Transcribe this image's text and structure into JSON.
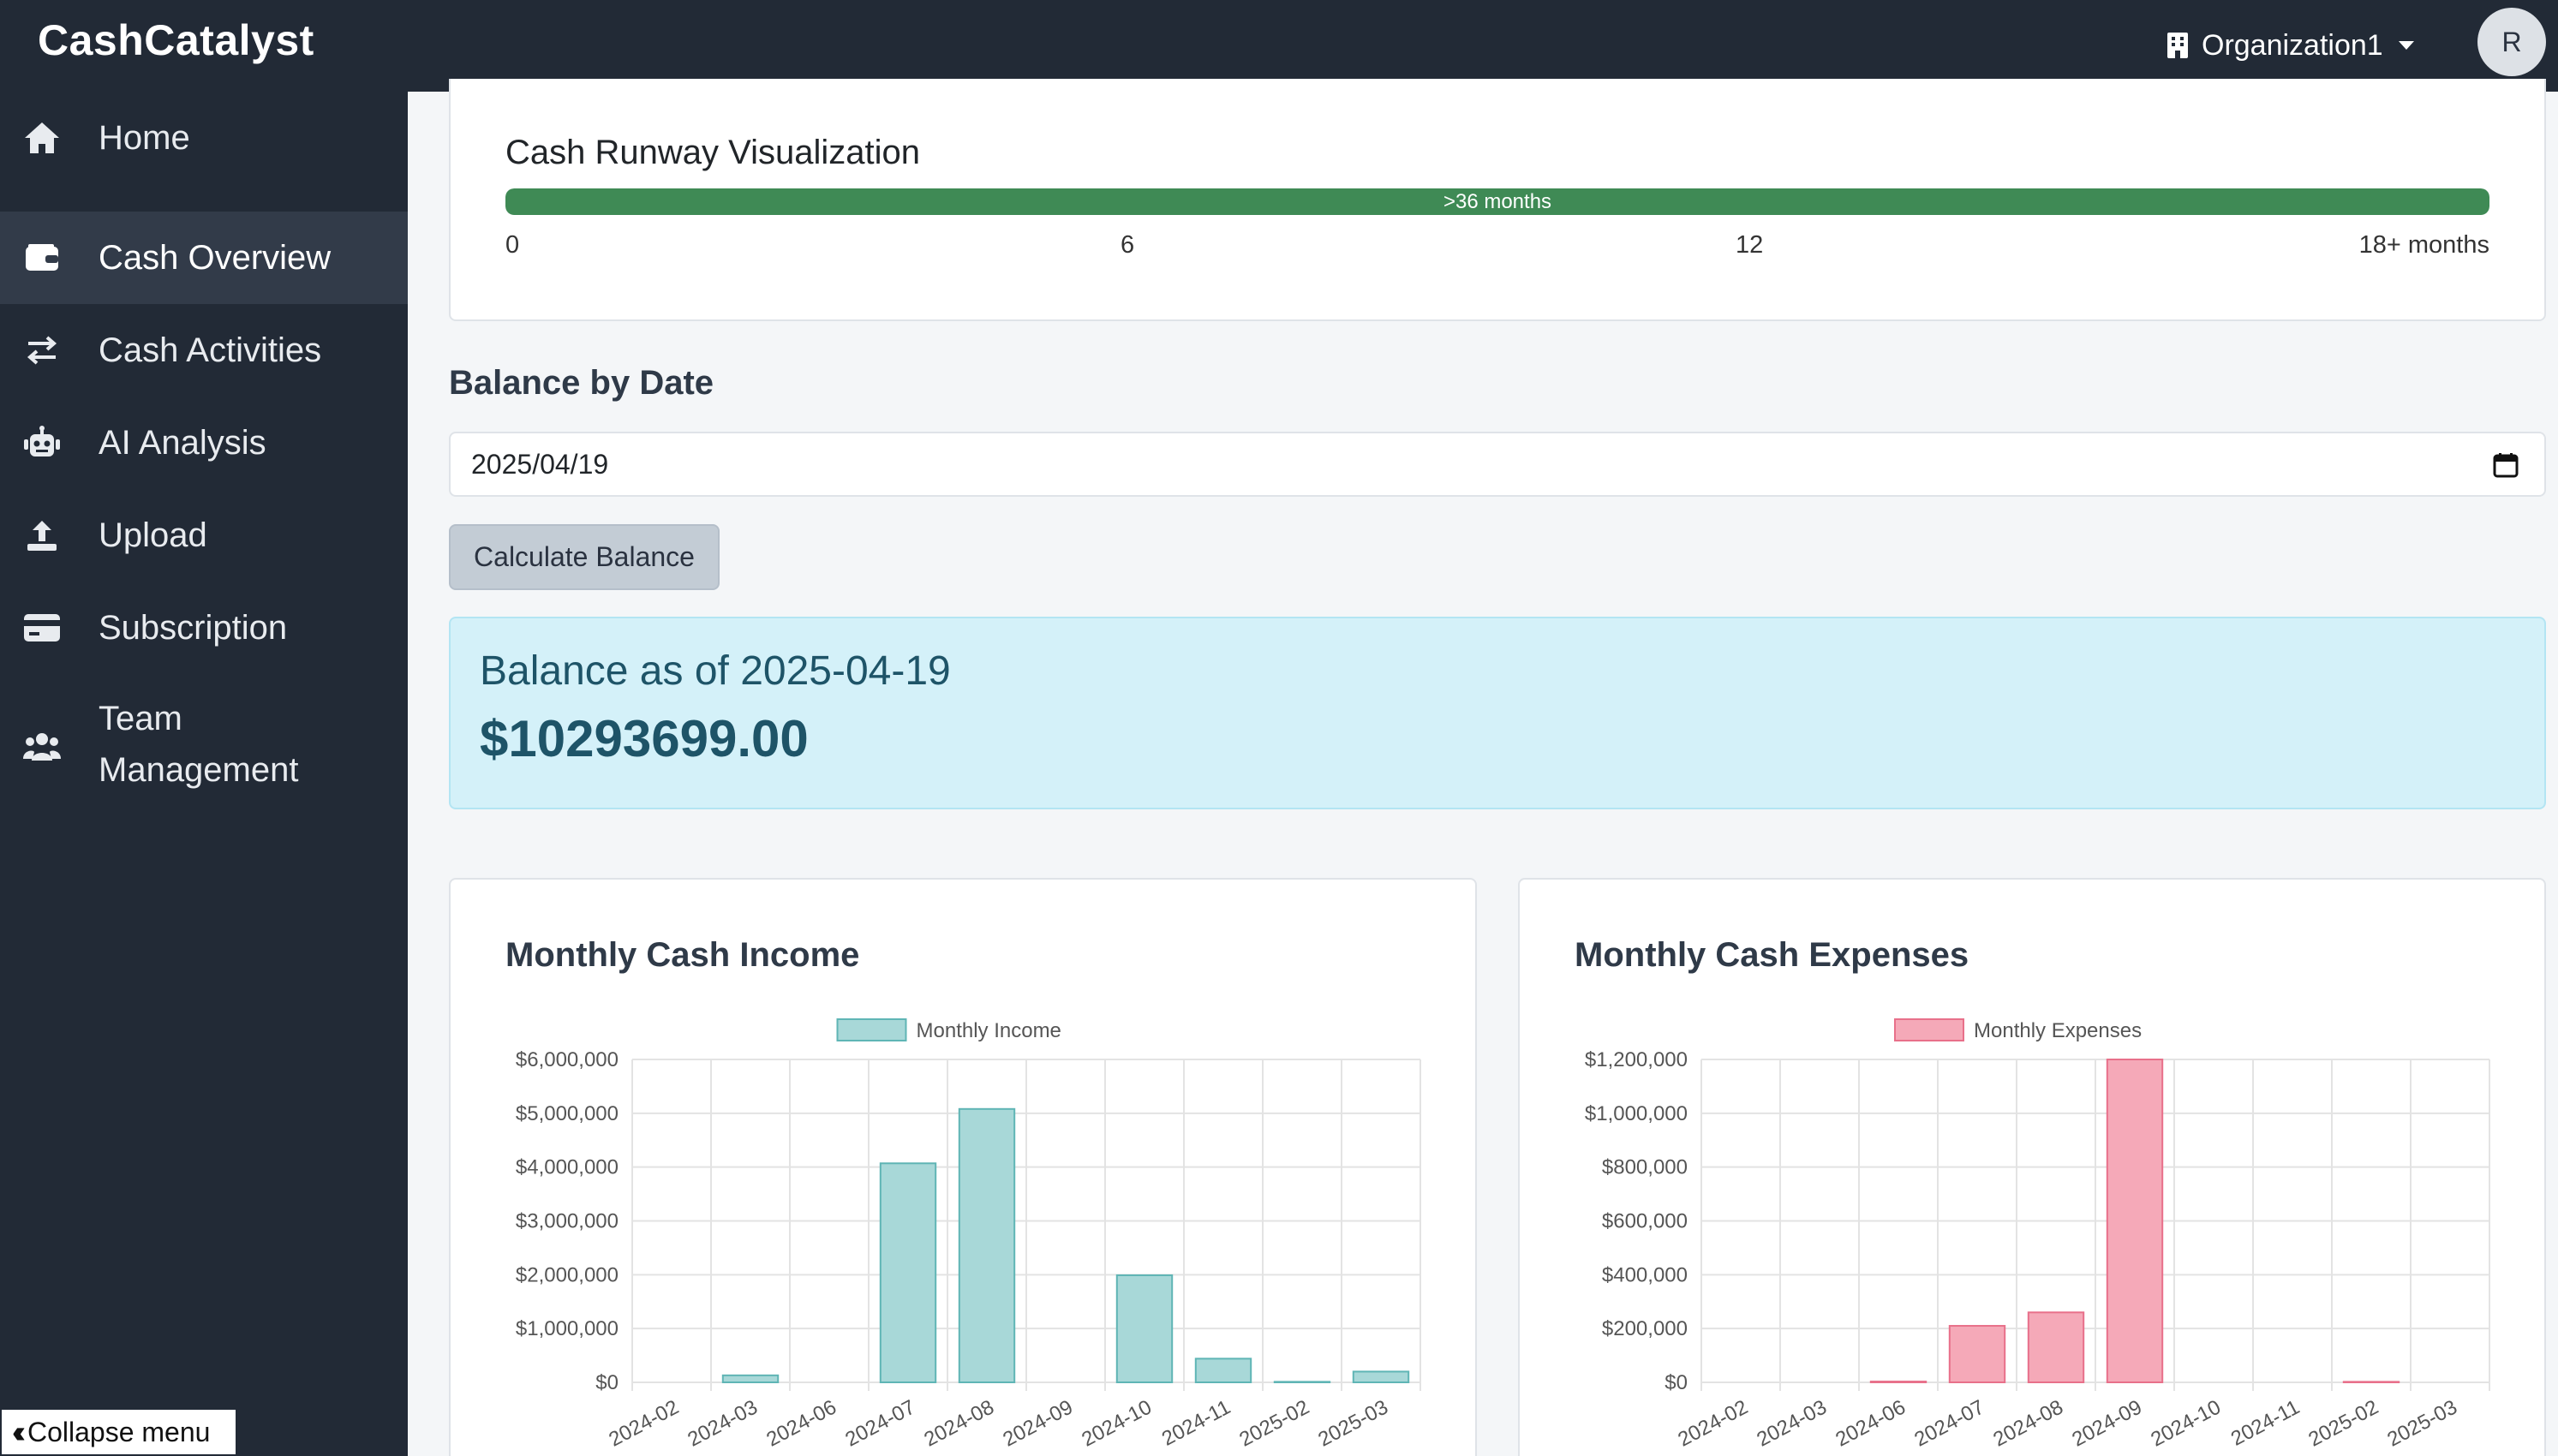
{
  "app": {
    "brand": "CashCatalyst"
  },
  "header": {
    "org_name": "Organization1",
    "avatar_initial": "R"
  },
  "sidebar": {
    "items": [
      {
        "label": "Home",
        "icon": "home-icon",
        "active": false
      },
      {
        "label": "Cash Overview",
        "icon": "wallet-icon",
        "active": true
      },
      {
        "label": "Cash Activities",
        "icon": "exchange-icon",
        "active": false
      },
      {
        "label": "AI Analysis",
        "icon": "robot-icon",
        "active": false
      },
      {
        "label": "Upload",
        "icon": "upload-icon",
        "active": false
      },
      {
        "label": "Subscription",
        "icon": "credit-card-icon",
        "active": false
      },
      {
        "label": "Team Management",
        "label_line1": "Team",
        "label_line2": "Management",
        "icon": "users-icon",
        "active": false
      }
    ],
    "collapse_label": "Collapse menu"
  },
  "runway": {
    "title": "Cash Runway Visualization",
    "bar_label": ">36 months",
    "fill_percent": 100,
    "ticks": [
      "0",
      "6",
      "12",
      "18+ months"
    ],
    "color": "#3f8a55"
  },
  "balance_by_date": {
    "title": "Balance by Date",
    "date_value": "2025/04/19",
    "button_label": "Calculate Balance",
    "result_label": "Balance as of 2025-04-19",
    "result_value": "$10293699.00"
  },
  "charts": {
    "income_title": "Monthly Cash Income",
    "expense_title": "Monthly Cash Expenses"
  },
  "chart_data": [
    {
      "type": "bar",
      "title": "Monthly Cash Income",
      "categories": [
        "2024-02",
        "2024-03",
        "2024-06",
        "2024-07",
        "2024-08",
        "2024-09",
        "2024-10",
        "2024-11",
        "2025-02",
        "2025-03"
      ],
      "series": [
        {
          "name": "Monthly Income",
          "values": [
            0,
            130000,
            0,
            4070000,
            5080000,
            0,
            1990000,
            440000,
            10000,
            200000
          ]
        }
      ],
      "yticks": [
        "$0",
        "$1,000,000",
        "$2,000,000",
        "$3,000,000",
        "$4,000,000",
        "$5,000,000",
        "$6,000,000"
      ],
      "ylim": [
        0,
        6000000
      ],
      "legend": "top",
      "grid": true,
      "fill_color": "#a8d8d8",
      "border_color": "#5fb5b5"
    },
    {
      "type": "bar",
      "title": "Monthly Cash Expenses",
      "categories": [
        "2024-02",
        "2024-03",
        "2024-06",
        "2024-07",
        "2024-08",
        "2024-09",
        "2024-10",
        "2024-11",
        "2025-02",
        "2025-03"
      ],
      "series": [
        {
          "name": "Monthly Expenses",
          "values": [
            0,
            0,
            3000,
            210000,
            260000,
            1200000,
            0,
            0,
            2000,
            0
          ]
        }
      ],
      "yticks": [
        "$0",
        "$200,000",
        "$400,000",
        "$600,000",
        "$800,000",
        "$1,000,000",
        "$1,200,000"
      ],
      "ylim": [
        0,
        1200000
      ],
      "legend": "top",
      "grid": true,
      "fill_color": "#f5a9b8",
      "border_color": "#e8708a"
    }
  ]
}
